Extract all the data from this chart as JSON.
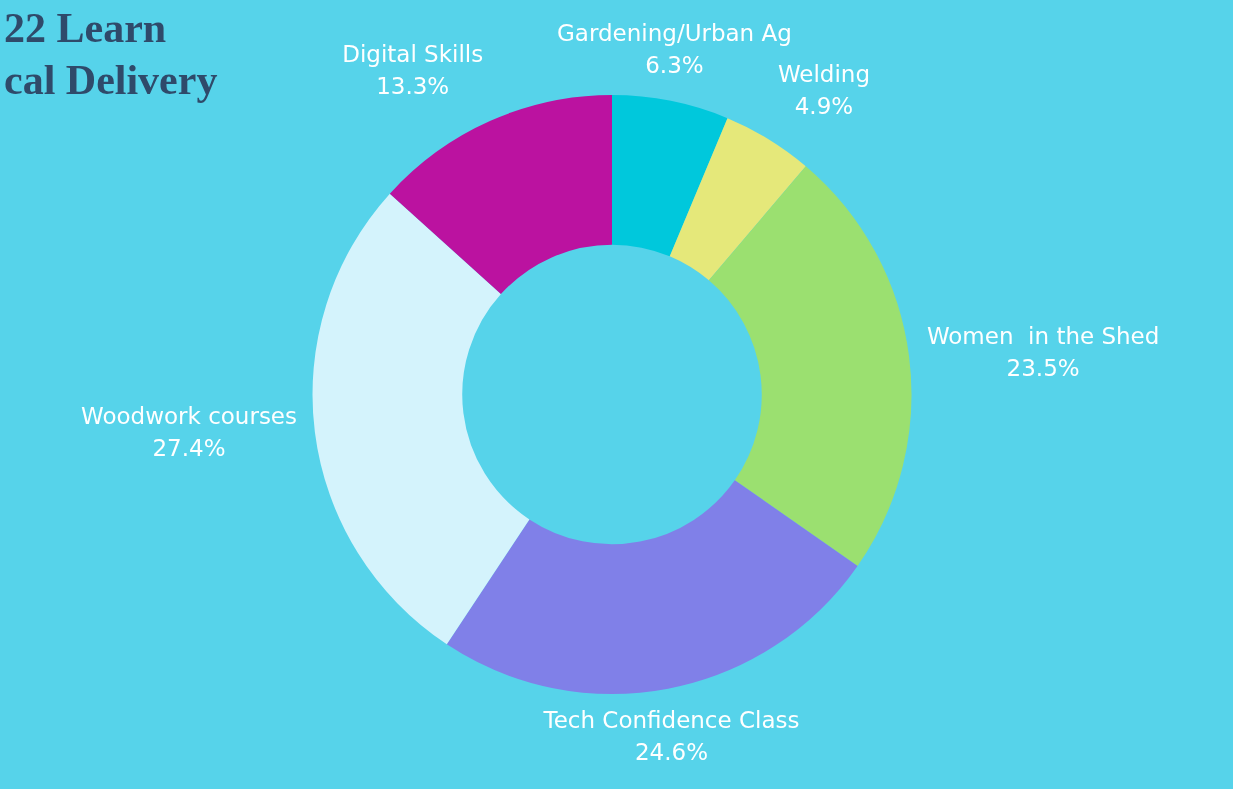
{
  "chart_data": {
    "type": "donut",
    "title": "22 Learn\ncal Delivery",
    "categories": [
      "Gardening/Urban Ag",
      "Welding",
      "Women  in the Shed",
      "Tech Confidence Class",
      "Woodwork courses",
      "Digital Skills"
    ],
    "values": [
      6.3,
      4.9,
      23.5,
      24.6,
      27.4,
      13.3
    ],
    "colors": [
      "#00c8dc",
      "#e5e87a",
      "#9be070",
      "#8080e8",
      "#d4f3fc",
      "#bb12a0"
    ],
    "value_labels": [
      "6.3%",
      "4.9%",
      "23.5%",
      "24.6%",
      "27.4%",
      "13.3%"
    ]
  }
}
